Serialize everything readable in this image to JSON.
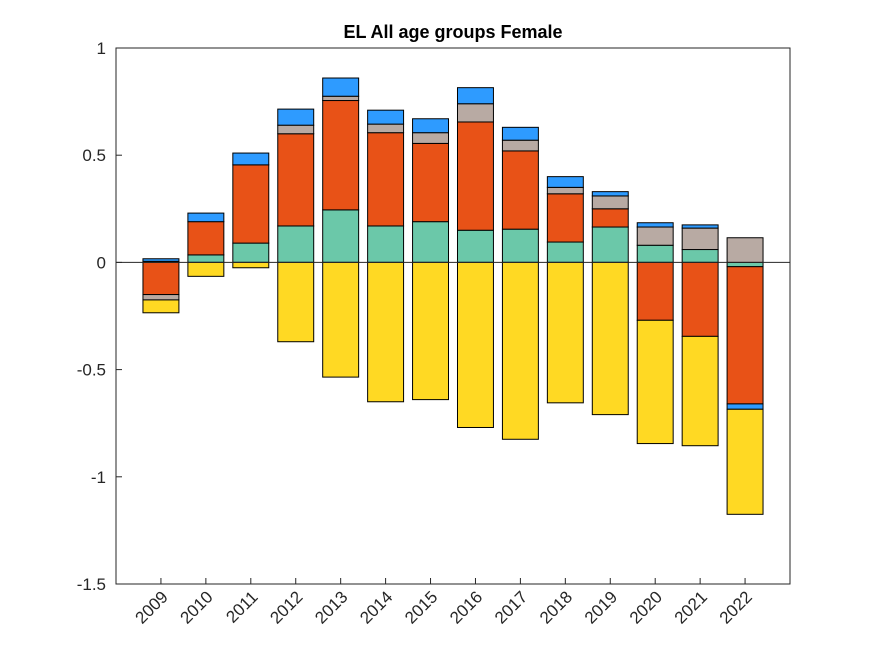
{
  "chart_data": {
    "type": "bar",
    "stacked": true,
    "title": "EL  All age groups  Female",
    "xlabel": "",
    "ylabel": "",
    "ylim": [
      -1.5,
      1
    ],
    "yticks": [
      -1.5,
      -1,
      -0.5,
      0,
      0.5,
      1
    ],
    "ytick_labels": [
      "-1.5",
      "-1",
      "-0.5",
      "0",
      "0.5",
      "1"
    ],
    "categories": [
      "2009",
      "2010",
      "2011",
      "2012",
      "2013",
      "2014",
      "2015",
      "2016",
      "2017",
      "2018",
      "2019",
      "2020",
      "2021",
      "2022"
    ],
    "grid": false,
    "legend": null,
    "series": [
      {
        "name": "yellow component",
        "color": "#FFD923",
        "values": [
          -0.06,
          -0.065,
          -0.025,
          -0.37,
          -0.535,
          -0.65,
          -0.64,
          -0.77,
          -0.825,
          -0.655,
          -0.71,
          -0.575,
          -0.51,
          -0.49
        ]
      },
      {
        "name": "teal component",
        "color": "#6BC8A9",
        "values": [
          0.005,
          0.035,
          0.09,
          0.17,
          0.245,
          0.17,
          0.19,
          0.15,
          0.155,
          0.095,
          0.165,
          0.08,
          0.06,
          -0.02
        ]
      },
      {
        "name": "orange component",
        "color": "#E85217",
        "values": [
          -0.15,
          0.155,
          0.365,
          0.43,
          0.51,
          0.435,
          0.365,
          0.505,
          0.365,
          0.225,
          0.085,
          -0.27,
          -0.345,
          -0.64
        ]
      },
      {
        "name": "gray component",
        "color": "#B8AAA3",
        "values": [
          -0.025,
          0.0,
          0.0,
          0.04,
          0.02,
          0.04,
          0.05,
          0.085,
          0.05,
          0.03,
          0.06,
          0.085,
          0.1,
          0.115
        ]
      },
      {
        "name": "blue component",
        "color": "#2E9BFF",
        "values": [
          0.012,
          0.04,
          0.055,
          0.075,
          0.085,
          0.065,
          0.065,
          0.075,
          0.06,
          0.05,
          0.02,
          0.02,
          0.015,
          -0.025
        ]
      }
    ],
    "stack_order": [
      "teal component",
      "orange component",
      "gray component",
      "blue component",
      "yellow component"
    ]
  }
}
